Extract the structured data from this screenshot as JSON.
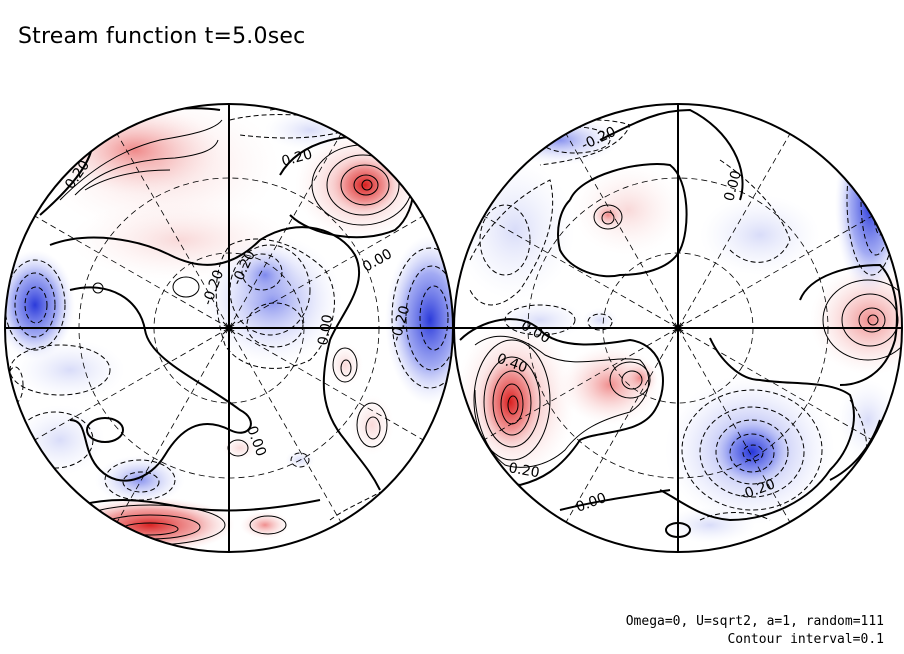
{
  "title": "Stream function t=5.0sec",
  "notes": {
    "params": "Omega=0, U=sqrt2, a=1, random=111",
    "interval": "Contour interval=0.1"
  },
  "colors": {
    "positive": "#e23030",
    "negative": "#3040e0",
    "line": "#000000",
    "background": "#ffffff"
  },
  "contour_labels": {
    "left": [
      "0.20",
      "0.20",
      "0.00",
      "-0.20",
      "-0.20",
      "0.00",
      "-0.20",
      "0.00"
    ],
    "right": [
      "-0.20",
      "0.00",
      "0.00",
      "0.40",
      "0.20",
      "0.00",
      "-0.20"
    ]
  }
}
